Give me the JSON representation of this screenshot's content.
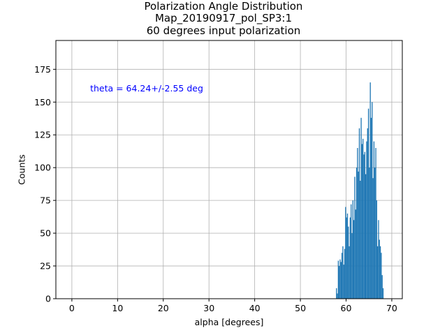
{
  "chart_data": {
    "type": "bar",
    "title": "Polarization Angle Distribution",
    "subtitle": "Map_20190917_pol_SP3:1",
    "subtitle2": "60 degrees input polarization",
    "xlabel": "alpha [degrees]",
    "ylabel": "Counts",
    "annotation": "theta = 64.24+/-2.55 deg",
    "xlim": [
      -3.5,
      72.3
    ],
    "ylim": [
      0,
      197
    ],
    "xticks": [
      0,
      10,
      20,
      30,
      40,
      50,
      60,
      70
    ],
    "yticks": [
      0,
      25,
      50,
      75,
      100,
      125,
      150,
      175
    ],
    "grid": true,
    "bar_color": "#1f77b4",
    "annotation_color": "#0000ff",
    "bin_width": 0.2,
    "x": [
      57.9,
      58.1,
      58.3,
      58.5,
      58.7,
      58.9,
      59.1,
      59.3,
      59.5,
      59.7,
      59.9,
      60.1,
      60.3,
      60.5,
      60.7,
      60.9,
      61.1,
      61.3,
      61.5,
      61.7,
      61.9,
      62.1,
      62.3,
      62.5,
      62.7,
      62.9,
      63.1,
      63.3,
      63.5,
      63.7,
      63.9,
      64.1,
      64.3,
      64.5,
      64.7,
      64.9,
      65.1,
      65.3,
      65.5,
      65.7,
      65.9,
      66.1,
      66.3,
      66.5,
      66.7,
      66.9,
      67.1,
      67.3,
      67.5,
      67.7,
      67.9,
      68.1,
      68.3,
      68.5,
      68.7
    ],
    "values": [
      8,
      4,
      29,
      25,
      30,
      28,
      35,
      40,
      26,
      38,
      70,
      62,
      65,
      55,
      40,
      62,
      72,
      50,
      75,
      60,
      93,
      68,
      100,
      115,
      97,
      130,
      90,
      138,
      118,
      122,
      110,
      112,
      95,
      120,
      130,
      145,
      100,
      165,
      138,
      150,
      92,
      120,
      100,
      115,
      75,
      40,
      60,
      45,
      40,
      35,
      18,
      8,
      0,
      0,
      0
    ]
  }
}
